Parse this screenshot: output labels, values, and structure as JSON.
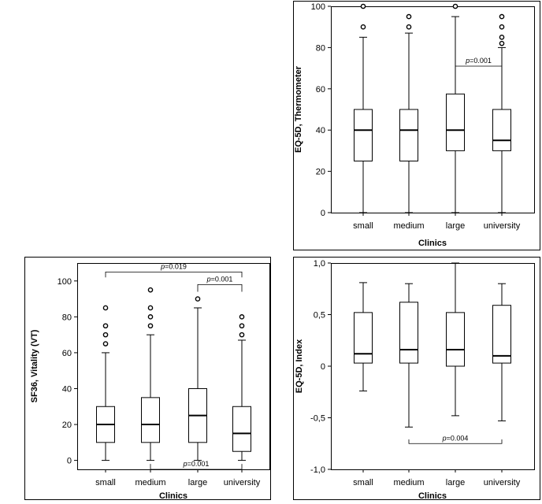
{
  "chart_data": [
    {
      "type": "boxplot",
      "panel": "top-right",
      "xlabel": "Clinics",
      "ylabel": "EQ-5D, Thermometer",
      "categories": [
        "small",
        "medium",
        "large",
        "university"
      ],
      "ylim": [
        0,
        100
      ],
      "yticks": [
        "0",
        "20",
        "40",
        "60",
        "80",
        "100"
      ],
      "ytick_values": [
        0,
        20,
        40,
        60,
        80,
        100
      ],
      "boxes": [
        {
          "min": 0,
          "q1": 25,
          "median": 40,
          "q3": 50,
          "max": 85,
          "outliers": [
            90,
            100
          ]
        },
        {
          "min": 0,
          "q1": 25,
          "median": 40,
          "q3": 50,
          "max": 87,
          "outliers": [
            90,
            95
          ]
        },
        {
          "min": 0,
          "q1": 30,
          "median": 40,
          "q3": 57.5,
          "max": 95,
          "outliers": [
            100
          ]
        },
        {
          "min": 0,
          "q1": 30,
          "median": 35,
          "q3": 50,
          "max": 80,
          "outliers": [
            82,
            85,
            90,
            95
          ]
        }
      ],
      "annotations": [
        {
          "text": "p=0.001",
          "from": 2,
          "to": 3,
          "y": 71,
          "drop": 3
        }
      ]
    },
    {
      "type": "boxplot",
      "panel": "bottom-left",
      "xlabel": "Clinics",
      "ylabel": "SF36, Vitality (VT)",
      "categories": [
        "small",
        "medium",
        "large",
        "university"
      ],
      "ylim": [
        -5,
        110
      ],
      "yticks": [
        "0",
        "20",
        "40",
        "60",
        "80",
        "100"
      ],
      "ytick_values": [
        0,
        20,
        40,
        60,
        80,
        100
      ],
      "boxes": [
        {
          "min": 0,
          "q1": 10,
          "median": 20,
          "q3": 30,
          "max": 60,
          "outliers": [
            65,
            70,
            75,
            85
          ]
        },
        {
          "min": 0,
          "q1": 10,
          "median": 20,
          "q3": 35,
          "max": 70,
          "outliers": [
            75,
            80,
            85,
            95
          ]
        },
        {
          "min": 0,
          "q1": 10,
          "median": 25,
          "q3": 40,
          "max": 85,
          "outliers": [
            90
          ]
        },
        {
          "min": 0,
          "q1": 5,
          "median": 15,
          "q3": 30,
          "max": 67,
          "outliers": [
            70,
            75,
            80
          ]
        }
      ],
      "annotations": [
        {
          "text": "p=0.019",
          "from": 0,
          "to": 3,
          "y": 105,
          "drop": -3
        },
        {
          "text": "p=0.001",
          "from": 2,
          "to": 3,
          "y": 98,
          "drop": -4
        },
        {
          "text": "p=0.001",
          "from": 1,
          "to": 3,
          "y": -5,
          "drop": 3
        }
      ]
    },
    {
      "type": "boxplot",
      "panel": "bottom-right",
      "xlabel": "Clinics",
      "ylabel": "EQ-5D, Index",
      "categories": [
        "small",
        "medium",
        "large",
        "university"
      ],
      "ylim": [
        -1,
        1
      ],
      "yticks": [
        "-1,0",
        "-0,5",
        "0",
        "0,5",
        "1,0"
      ],
      "ytick_values": [
        -1,
        -0.5,
        0,
        0.5,
        1
      ],
      "boxes": [
        {
          "min": -0.24,
          "q1": 0.03,
          "median": 0.12,
          "q3": 0.52,
          "max": 0.81,
          "outliers": []
        },
        {
          "min": -0.59,
          "q1": 0.03,
          "median": 0.16,
          "q3": 0.62,
          "max": 0.8,
          "outliers": []
        },
        {
          "min": -0.48,
          "q1": 0,
          "median": 0.16,
          "q3": 0.52,
          "max": 1.0,
          "outliers": []
        },
        {
          "min": -0.53,
          "q1": 0.03,
          "median": 0.1,
          "q3": 0.59,
          "max": 0.8,
          "outliers": []
        }
      ],
      "annotations": [
        {
          "text": "p=0.004",
          "from": 1,
          "to": 3,
          "y": -0.75,
          "drop": 0.04
        }
      ]
    }
  ]
}
